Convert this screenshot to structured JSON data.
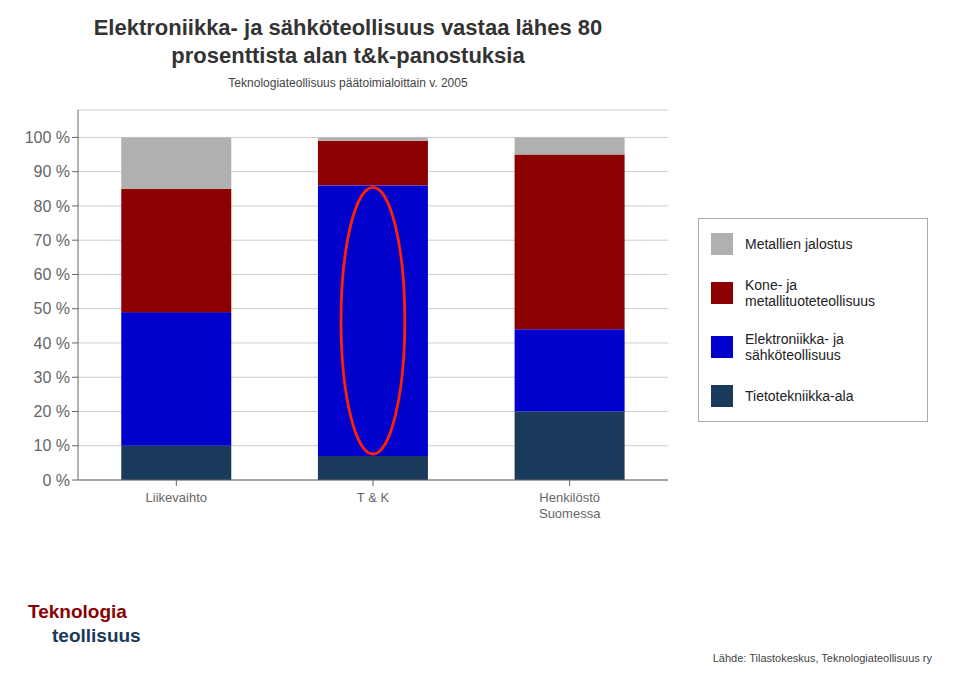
{
  "chart_data": {
    "type": "bar",
    "stacked": true,
    "title": "Elektroniikka- ja sähköteollisuus vastaa lähes 80\nprosenttista alan t&k-panostuksia",
    "subtitle": "Teknologiateollisuus päätoimialoittain v. 2005",
    "categories": [
      "Liikevaihto",
      "T & K",
      "Henkilöstö\nSuomessa"
    ],
    "series": [
      {
        "name": "Tietotekniikka-ala",
        "color": "#1a3a5c",
        "values": [
          10,
          7,
          20
        ]
      },
      {
        "name": "Elektroniikka- ja\nsähköteollisuus",
        "color": "#0000cc",
        "values": [
          39,
          79,
          24
        ]
      },
      {
        "name": "Kone- ja\nmetallituoteteollisuus",
        "color": "#8b0000",
        "values": [
          36,
          13,
          51
        ]
      },
      {
        "name": "Metallien jalostus",
        "color": "#b0b0b0",
        "values": [
          15,
          1,
          5
        ]
      }
    ],
    "ylim": [
      0,
      108
    ],
    "yticks": [
      {
        "value": 0,
        "label": "0 %"
      },
      {
        "value": 10,
        "label": "10 %"
      },
      {
        "value": 20,
        "label": "20 %"
      },
      {
        "value": 30,
        "label": "30 %"
      },
      {
        "value": 40,
        "label": "40 %"
      },
      {
        "value": 50,
        "label": "50 %"
      },
      {
        "value": 60,
        "label": "60 %"
      },
      {
        "value": 70,
        "label": "70 %"
      },
      {
        "value": 80,
        "label": "80 %"
      },
      {
        "value": 90,
        "label": "90 %"
      },
      {
        "value": 100,
        "label": "100 %"
      }
    ],
    "grid": true,
    "legend": "right",
    "annotations": [
      "Teknologia",
      "teollisuus",
      "Lähde: Tilastokeskus, Teknologiateollisuus ry"
    ]
  }
}
